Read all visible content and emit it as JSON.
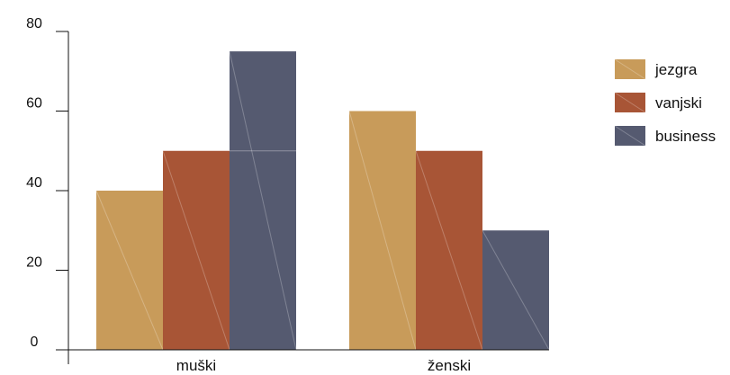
{
  "chart_data": {
    "type": "bar",
    "categories": [
      "muški",
      "ženski"
    ],
    "series": [
      {
        "name": "jezgra",
        "values": [
          40,
          60
        ],
        "color": "#c89b5a"
      },
      {
        "name": "vanjski",
        "values": [
          50,
          50
        ],
        "color": "#a85536"
      },
      {
        "name": "business",
        "values": [
          75,
          30
        ],
        "color": "#555a70"
      }
    ],
    "ylim": [
      0,
      80
    ],
    "yticks": [
      0,
      20,
      40,
      60,
      80
    ],
    "grid": false,
    "legend_position": "right",
    "title": "",
    "xlabel": "",
    "ylabel": ""
  }
}
